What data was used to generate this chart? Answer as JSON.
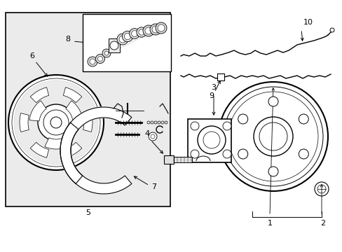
{
  "bg": "#ffffff",
  "lc": "#000000",
  "box_fill": "#ebebeb",
  "fig_w": 4.89,
  "fig_h": 3.6,
  "dpi": 100
}
